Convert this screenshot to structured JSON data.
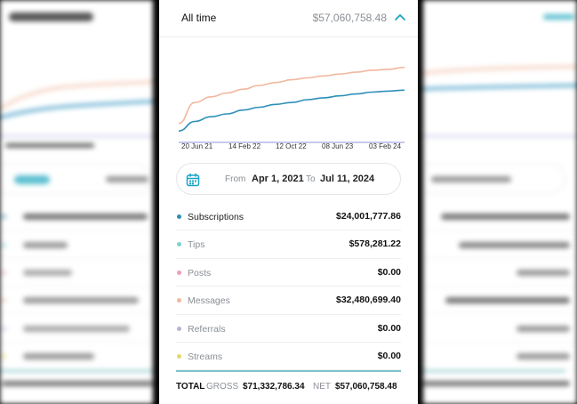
{
  "period": {
    "label": "All time",
    "amount": "$57,060,758.48"
  },
  "chart_data": {
    "type": "line",
    "x_tick_labels": [
      "20 Jun 21",
      "14 Feb 22",
      "12 Oct 22",
      "08 Jun 23",
      "03 Feb 24"
    ],
    "series": [
      {
        "color": "#f2b79f",
        "values": [
          20,
          42,
          48,
          52,
          56,
          60,
          63,
          66,
          68,
          70,
          72,
          74,
          76,
          77,
          79
        ]
      },
      {
        "color": "#2f8fb8",
        "values": [
          12,
          22,
          27,
          30,
          34,
          37,
          40,
          42,
          45,
          47,
          49,
          51,
          53,
          54,
          55
        ]
      },
      {
        "color": "#c6c8ec",
        "values": [
          0,
          0,
          0,
          0,
          0,
          0,
          0,
          0,
          0,
          0,
          0,
          0,
          0,
          0,
          0
        ]
      }
    ],
    "ylim": [
      0,
      90
    ]
  },
  "date_range": {
    "from_label": "From",
    "from_value": "Apr 1, 2021",
    "to_label": "To",
    "to_value": "Jul 11, 2024"
  },
  "categories": [
    {
      "name": "Subscriptions",
      "amount": "$24,001,777.86",
      "color": "#2f8fb8",
      "name_color": "#222"
    },
    {
      "name": "Tips",
      "amount": "$578,281.22",
      "color": "#7fd1cf",
      "name_color": "#8a8f96"
    },
    {
      "name": "Posts",
      "amount": "$0.00",
      "color": "#ef9fb4",
      "name_color": "#8a8f96"
    },
    {
      "name": "Messages",
      "amount": "$32,480,699.40",
      "color": "#f2b79f",
      "name_color": "#8a8f96"
    },
    {
      "name": "Referrals",
      "amount": "$0.00",
      "color": "#b7b2d9",
      "name_color": "#8a8f96"
    },
    {
      "name": "Streams",
      "amount": "$0.00",
      "color": "#e9d66b",
      "name_color": "#8a8f96"
    }
  ],
  "total": {
    "label": "TOTAL",
    "gross_label": "GROSS",
    "gross_value": "$71,332,786.34",
    "net_label": "NET",
    "net_value": "$57,060,758.48"
  }
}
